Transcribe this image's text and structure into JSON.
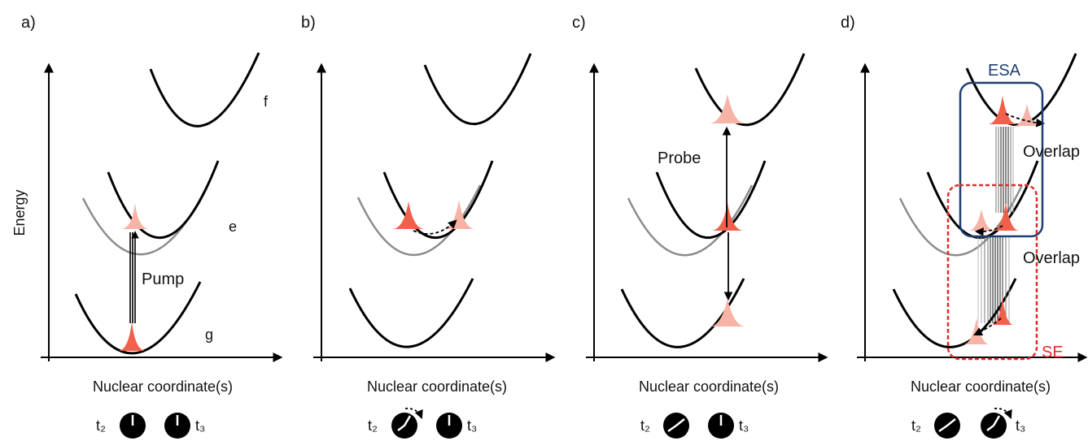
{
  "panels": [
    {
      "id": "a",
      "letter": "a)",
      "y_axis_label": "Energy",
      "x_axis_label": "Nuclear coordinate(s)",
      "state_labels": {
        "f": "f",
        "e": "e",
        "g": "g"
      },
      "arrow_label": "Pump",
      "clock_labels": {
        "left": "t₂",
        "right": "t₃"
      }
    },
    {
      "id": "b",
      "letter": "b)",
      "x_axis_label": "Nuclear coordinate(s)",
      "clock_labels": {
        "left": "t₂",
        "right": "t₃"
      }
    },
    {
      "id": "c",
      "letter": "c)",
      "x_axis_label": "Nuclear coordinate(s)",
      "arrow_label": "Probe",
      "clock_labels": {
        "left": "t₂",
        "right": "t₃"
      }
    },
    {
      "id": "d",
      "letter": "d)",
      "x_axis_label": "Nuclear coordinate(s)",
      "box_labels": {
        "esa": "ESA",
        "se": "SE"
      },
      "overlap_labels": [
        "Overlap",
        "Overlap"
      ],
      "clock_labels": {
        "left": "t₂",
        "right": "t₃"
      }
    }
  ],
  "colors": {
    "wavepacket_dark": "#f0604a",
    "wavepacket_light": "#f7b3a6",
    "esa_box": "#1f3f73",
    "se_box": "#e32b2b",
    "displaced_curve": "#8c8c8c"
  }
}
